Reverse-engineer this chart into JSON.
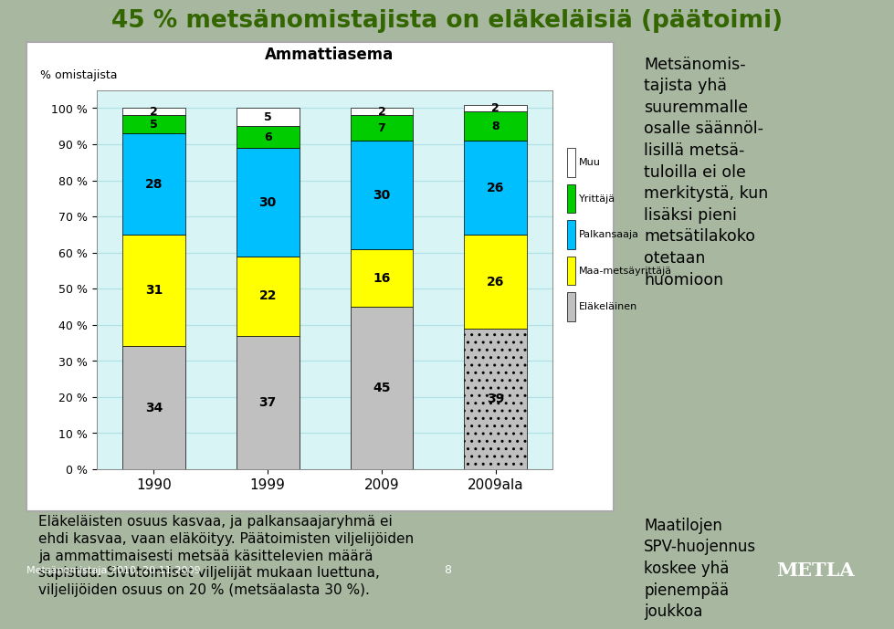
{
  "title": "45 % metsänomistajista on eläkeläisiä (päätoimi)",
  "chart_title": "Ammattiasema",
  "ylabel": "% omistajista",
  "categories": [
    "1990",
    "1999",
    "2009",
    "2009ala"
  ],
  "series": {
    "Eläkeläinen": [
      34,
      37,
      45,
      39
    ],
    "Maa-metsäyrittäjä": [
      31,
      22,
      16,
      26
    ],
    "Palkansaaja": [
      28,
      30,
      30,
      26
    ],
    "Yrittäjä": [
      5,
      6,
      7,
      8
    ],
    "Muu": [
      2,
      5,
      2,
      2
    ]
  },
  "colors": {
    "Eläkeläinen": "#c0c0c0",
    "Maa-metsäyrittäjä": "#ffff00",
    "Palkansaaja": "#00bfff",
    "Yrittäjä": "#00cc00",
    "Muu": "#ffffff"
  },
  "legend_order": [
    "Muu",
    "Yrittäjä",
    "Palkansaaja",
    "Maa-metsäyrittäjä",
    "Eläkeläinen"
  ],
  "yticks": [
    0,
    10,
    20,
    30,
    40,
    50,
    60,
    70,
    80,
    90,
    100
  ],
  "ytick_labels": [
    "0 %",
    "10 %",
    "20 %",
    "30 %",
    "40 %",
    "50 %",
    "60 %",
    "70 %",
    "80 %",
    "90 %",
    "100 %"
  ],
  "chart_bg": "#d8f4f4",
  "right_box_text": "Metsänomis-\ntajista yhä\nsuuremmalle\nosalle säännöl-\nlisillä metsä-\ntuloilla ei ole\nmerkitystä, kun\nlisäksi pieni\nmetsätilakoko\notetaan\nhuomioon",
  "right_box_border": "#cc0000",
  "bottom_left_text": "Eläkeläisten osuus kasvaa, ja palkansaajaryhmä ei\nehdi kasvaa, vaan eläköityy. Päätoimisten viljelijöiden\nja ammattimaisesti metsää käsittelevien määrä\nsupistuu. Sivutoimiset viljelijät mukaan luettuna,\nviljelijöiden osuus on 20 % (metsäalasta 30 %).",
  "bottom_left_border": "#5555aa",
  "bottom_right_text": "Maatilojen\nSPV-huojennus\nkoskee yhä\npienempää\njoukkoa",
  "bottom_right_border": "#006600",
  "footer_left": "Metsänomistaja 2010, 20.11.2009",
  "footer_center": "8",
  "title_color": "#336600",
  "bg_color": "#a8b8a0",
  "footer_bg": "#2d6e2d",
  "footer_text_color": "#ffffff",
  "metla_color": "#ffffff"
}
